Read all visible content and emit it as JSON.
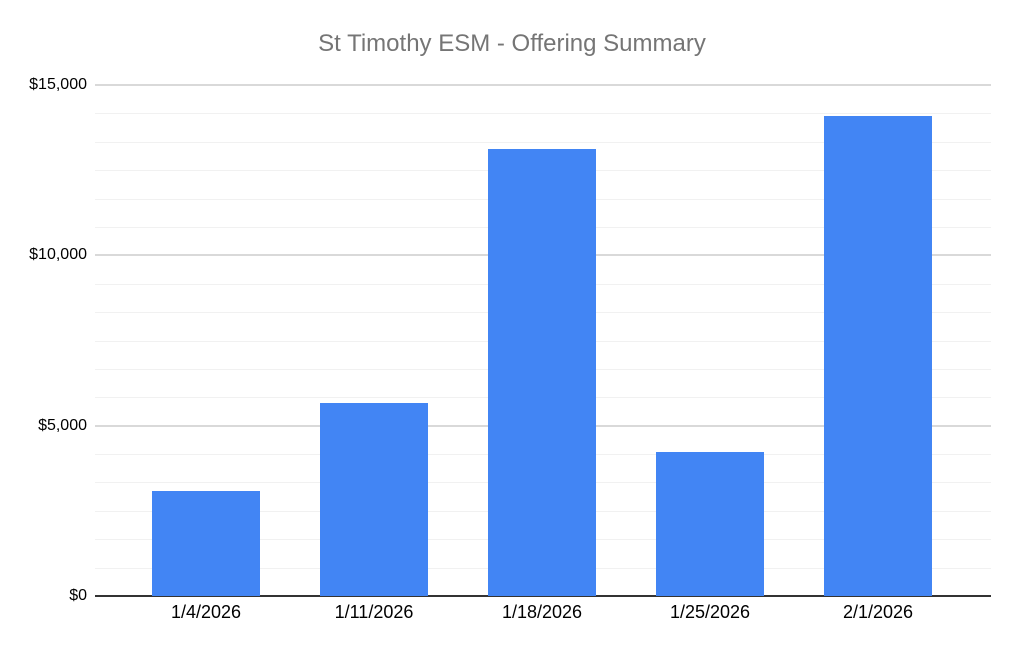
{
  "chart_data": {
    "type": "bar",
    "title": "St Timothy ESM - Offering Summary",
    "categories": [
      "1/4/2026",
      "1/11/2026",
      "1/18/2026",
      "1/25/2026",
      "2/1/2026"
    ],
    "values": [
      3090,
      5670,
      13130,
      4240,
      14100
    ],
    "xlabel": "",
    "ylabel": "",
    "ylim": [
      0,
      15000
    ],
    "y_major_step": 5000,
    "y_minor_divisions_per_major": 6,
    "yticks": [
      {
        "value": 0,
        "label": "$0"
      },
      {
        "value": 5000,
        "label": "$5,000"
      },
      {
        "value": 10000,
        "label": "$10,000"
      },
      {
        "value": 15000,
        "label": "$15,000"
      }
    ],
    "grid": true,
    "legend": "none",
    "colors": {
      "bar": "#4285F4",
      "title_text": "#757575",
      "axis_text": "#000000",
      "major_gridline": "#d9d9d9",
      "minor_gridline": "#f1f1f1",
      "axis_line": "#333333",
      "background": "#ffffff"
    }
  }
}
